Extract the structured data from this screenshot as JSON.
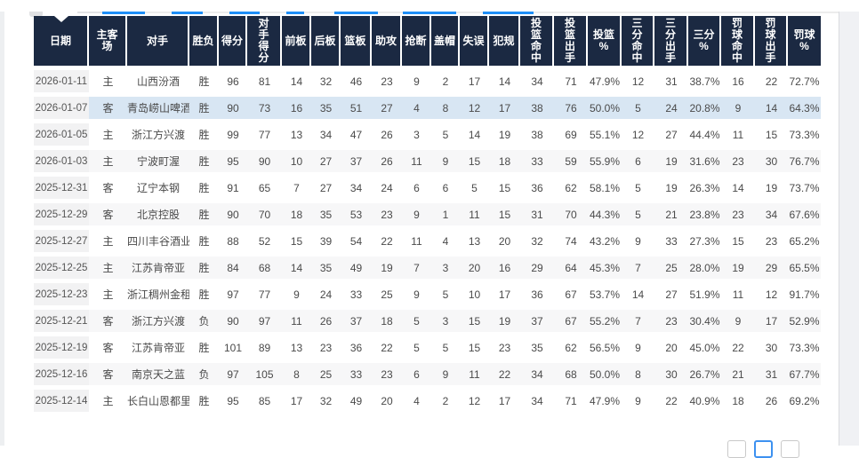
{
  "colors": {
    "header_bg": "#1b2942",
    "header_text": "#ffffff",
    "row_stripe": "#f7f7f8",
    "row_highlight": "#d8e6f3",
    "date_column_bg": "#f2f2f3",
    "cell_text": "#4a4a4a",
    "accent_blue": "#1e8ef7"
  },
  "table": {
    "columns": [
      "日期",
      "主客\n场",
      "对手",
      "胜负",
      "得分",
      "对\n手\n得\n分",
      "前板",
      "后板",
      "篮板",
      "助攻",
      "抢断",
      "盖帽",
      "失误",
      "犯规",
      "投\n篮\n命\n中",
      "投\n篮\n出\n手",
      "投篮\n%",
      "三\n分\n命\n中",
      "三\n分\n出\n手",
      "三分\n%",
      "罚\n球\n命\n中",
      "罚\n球\n出\n手",
      "罚球\n%"
    ],
    "rows": [
      {
        "highlighted": false,
        "cells": [
          "2026-01-11",
          "主",
          "山西汾酒",
          "胜",
          "96",
          "81",
          "14",
          "32",
          "46",
          "23",
          "9",
          "2",
          "17",
          "14",
          "34",
          "71",
          "47.9%",
          "12",
          "31",
          "38.7%",
          "16",
          "22",
          "72.7%"
        ]
      },
      {
        "highlighted": true,
        "cells": [
          "2026-01-07",
          "客",
          "青岛崂山啤酒",
          "胜",
          "90",
          "73",
          "16",
          "35",
          "51",
          "27",
          "4",
          "8",
          "12",
          "17",
          "38",
          "76",
          "50.0%",
          "5",
          "24",
          "20.8%",
          "9",
          "14",
          "64.3%"
        ]
      },
      {
        "highlighted": false,
        "cells": [
          "2026-01-05",
          "主",
          "浙江方兴渡",
          "胜",
          "99",
          "77",
          "13",
          "34",
          "47",
          "26",
          "3",
          "5",
          "14",
          "19",
          "38",
          "69",
          "55.1%",
          "12",
          "27",
          "44.4%",
          "11",
          "15",
          "73.3%"
        ]
      },
      {
        "highlighted": false,
        "cells": [
          "2026-01-03",
          "主",
          "宁波町渥",
          "胜",
          "95",
          "90",
          "10",
          "27",
          "37",
          "26",
          "11",
          "9",
          "15",
          "18",
          "33",
          "59",
          "55.9%",
          "6",
          "19",
          "31.6%",
          "23",
          "30",
          "76.7%"
        ]
      },
      {
        "highlighted": false,
        "cells": [
          "2025-12-31",
          "客",
          "辽宁本钢",
          "胜",
          "91",
          "65",
          "7",
          "27",
          "34",
          "24",
          "6",
          "6",
          "5",
          "15",
          "36",
          "62",
          "58.1%",
          "5",
          "19",
          "26.3%",
          "14",
          "19",
          "73.7%"
        ]
      },
      {
        "highlighted": false,
        "cells": [
          "2025-12-29",
          "客",
          "北京控股",
          "胜",
          "90",
          "70",
          "18",
          "35",
          "53",
          "23",
          "9",
          "1",
          "11",
          "15",
          "31",
          "70",
          "44.3%",
          "5",
          "21",
          "23.8%",
          "23",
          "34",
          "67.6%"
        ]
      },
      {
        "highlighted": false,
        "cells": [
          "2025-12-27",
          "主",
          "四川丰谷酒业",
          "胜",
          "88",
          "52",
          "15",
          "39",
          "54",
          "22",
          "11",
          "4",
          "13",
          "20",
          "32",
          "74",
          "43.2%",
          "9",
          "33",
          "27.3%",
          "15",
          "23",
          "65.2%"
        ]
      },
      {
        "highlighted": false,
        "cells": [
          "2025-12-25",
          "主",
          "江苏肯帝亚",
          "胜",
          "84",
          "68",
          "14",
          "35",
          "49",
          "19",
          "7",
          "3",
          "20",
          "16",
          "29",
          "64",
          "45.3%",
          "7",
          "25",
          "28.0%",
          "19",
          "29",
          "65.5%"
        ]
      },
      {
        "highlighted": false,
        "cells": [
          "2025-12-23",
          "主",
          "浙江稠州金租",
          "胜",
          "97",
          "77",
          "9",
          "24",
          "33",
          "25",
          "9",
          "5",
          "10",
          "17",
          "36",
          "67",
          "53.7%",
          "14",
          "27",
          "51.9%",
          "11",
          "12",
          "91.7%"
        ]
      },
      {
        "highlighted": false,
        "cells": [
          "2025-12-21",
          "客",
          "浙江方兴渡",
          "负",
          "90",
          "97",
          "11",
          "26",
          "37",
          "18",
          "5",
          "3",
          "15",
          "19",
          "37",
          "67",
          "55.2%",
          "7",
          "23",
          "30.4%",
          "9",
          "17",
          "52.9%"
        ]
      },
      {
        "highlighted": false,
        "cells": [
          "2025-12-19",
          "客",
          "江苏肯帝亚",
          "胜",
          "101",
          "89",
          "13",
          "23",
          "36",
          "22",
          "5",
          "5",
          "15",
          "23",
          "35",
          "62",
          "56.5%",
          "9",
          "20",
          "45.0%",
          "22",
          "30",
          "73.3%"
        ]
      },
      {
        "highlighted": false,
        "cells": [
          "2025-12-16",
          "客",
          "南京天之蓝",
          "负",
          "97",
          "105",
          "8",
          "25",
          "33",
          "23",
          "6",
          "9",
          "11",
          "22",
          "34",
          "68",
          "50.0%",
          "8",
          "30",
          "26.7%",
          "21",
          "31",
          "67.7%"
        ]
      },
      {
        "highlighted": false,
        "cells": [
          "2025-12-14",
          "主",
          "长白山恩都里",
          "胜",
          "95",
          "85",
          "17",
          "32",
          "49",
          "20",
          "4",
          "2",
          "12",
          "17",
          "34",
          "71",
          "47.9%",
          "9",
          "22",
          "40.9%",
          "18",
          "26",
          "69.2%"
        ]
      }
    ]
  }
}
